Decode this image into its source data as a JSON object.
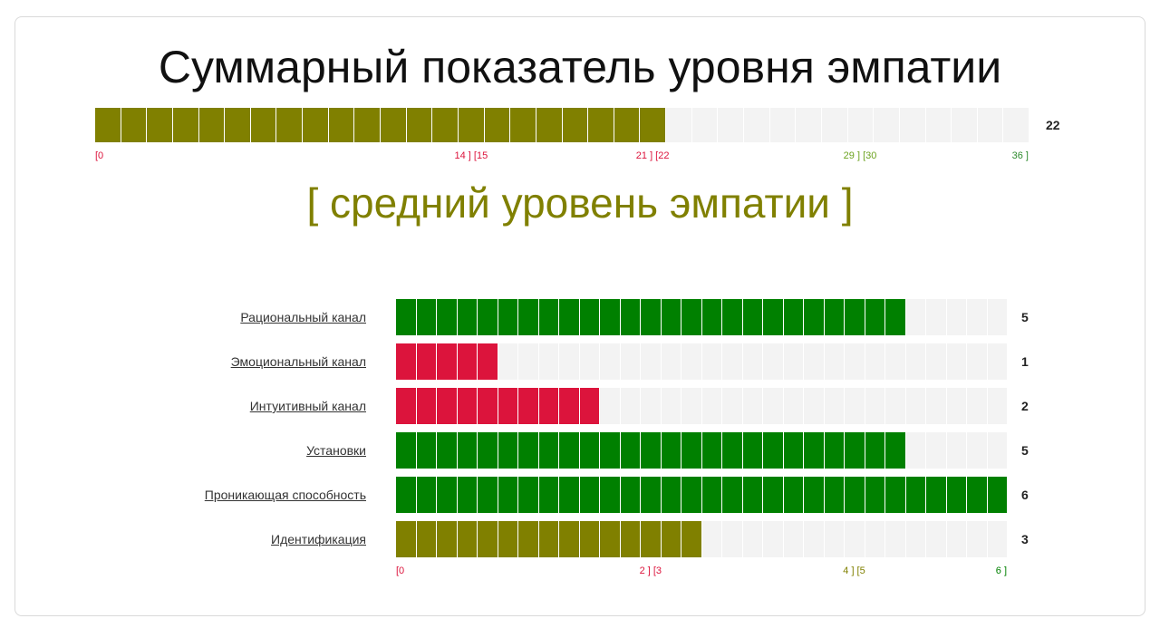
{
  "title": "Суммарный показатель уровня эмпатии",
  "level_text": "[ средний уровень эмпатии ]",
  "colors": {
    "low": "#dc143c",
    "medium": "#808000",
    "high": "#008000",
    "empty": "#f3f3f3"
  },
  "chart_data": [
    {
      "type": "bar",
      "orientation": "horizontal",
      "title": "Суммарный показатель уровня эмпатии",
      "scale": [
        0,
        36
      ],
      "values": [
        22
      ],
      "value_label": "22",
      "bar_color": "#808000",
      "ticks": [
        {
          "text": "[0",
          "value": 0,
          "color": "#dc143c"
        },
        {
          "text": "14 ] [15",
          "value": 14.5,
          "color": "#dc143c"
        },
        {
          "text": "21 ] [22",
          "value": 21.5,
          "color": "#dc143c"
        },
        {
          "text": "29 ] [30",
          "value": 29.5,
          "color": "#6ca21f"
        },
        {
          "text": "36 ]",
          "value": 36,
          "color": "#2e8b2e"
        }
      ]
    },
    {
      "type": "bar",
      "orientation": "horizontal",
      "scale": [
        0,
        6
      ],
      "cells_per_unit": 5,
      "categories": [
        "Рациональный канал",
        "Эмоциональный канал",
        "Интуитивный канал",
        "Установки",
        "Проникающая способность",
        "Идентификация"
      ],
      "values": [
        5,
        1,
        2,
        5,
        6,
        3
      ],
      "value_labels": [
        "5",
        "1",
        "2",
        "5",
        "6",
        "3"
      ],
      "bar_colors": [
        "#008000",
        "#dc143c",
        "#dc143c",
        "#008000",
        "#008000",
        "#808000"
      ],
      "ticks": [
        {
          "text": "[0",
          "value": 0,
          "color": "#dc143c"
        },
        {
          "text": "2 ] [3",
          "value": 2.5,
          "color": "#dc143c"
        },
        {
          "text": "4 ] [5",
          "value": 4.5,
          "color": "#808000"
        },
        {
          "text": "6 ]",
          "value": 6,
          "color": "#008000"
        }
      ]
    }
  ]
}
